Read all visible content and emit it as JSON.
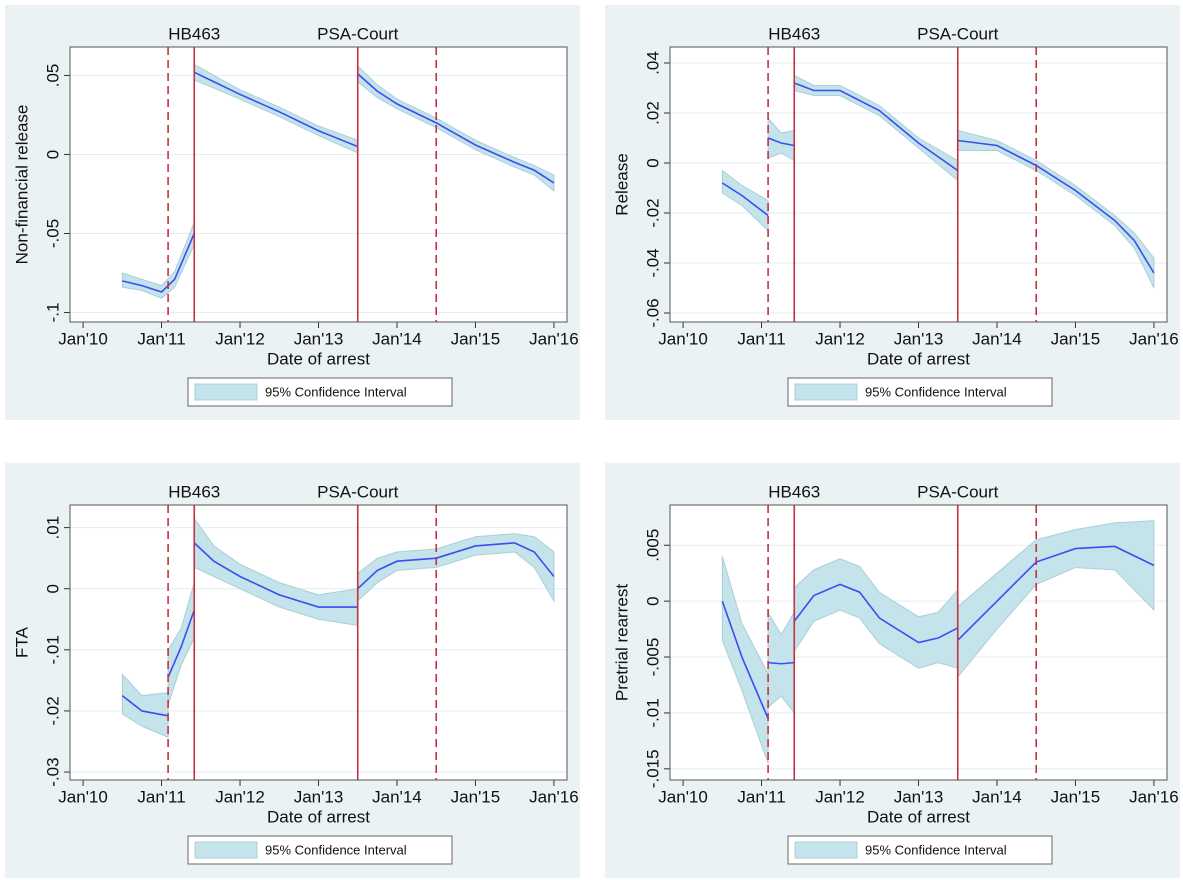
{
  "chart_data": [
    {
      "type": "line",
      "ylabel": "Non-financial release",
      "xlabel": "Date of arrest",
      "xlim": [
        "2009-11",
        "2016-03"
      ],
      "ylim": [
        -0.106,
        0.068
      ],
      "xticks": [
        {
          "value": "2010-01",
          "label": "Jan'10"
        },
        {
          "value": "2011-01",
          "label": "Jan'11"
        },
        {
          "value": "2012-01",
          "label": "Jan'12"
        },
        {
          "value": "2013-01",
          "label": "Jan'13"
        },
        {
          "value": "2014-01",
          "label": "Jan'14"
        },
        {
          "value": "2015-01",
          "label": "Jan'15"
        },
        {
          "value": "2016-01",
          "label": "Jan'16"
        }
      ],
      "yticks": [
        {
          "value": 0.05,
          "label": ".05"
        },
        0,
        {
          "value": -0.05,
          "label": "-.05"
        },
        {
          "value": -0.1,
          "label": "-.1"
        }
      ],
      "grid": true,
      "line_color": "#3a4ef2",
      "event_color": "#c8303f",
      "ci": {
        "name": "95% Confidence Interval",
        "color": "#c5e3ea"
      },
      "events": [
        {
          "label": "HB463",
          "lines": [
            {
              "x": "2011-02",
              "style": "dashed"
            },
            {
              "x": "2011-06",
              "style": "solid"
            }
          ]
        },
        {
          "label": "PSA-Court",
          "lines": [
            {
              "x": "2013-07",
              "style": "solid"
            },
            {
              "x": "2014-07",
              "style": "dashed"
            }
          ]
        }
      ],
      "segments": [
        {
          "x": [
            "2010-07",
            "2010-10",
            "2011-01",
            "2011-03",
            "2011-06"
          ],
          "values": [
            -0.08,
            -0.083,
            -0.087,
            -0.079,
            -0.05
          ],
          "lower": [
            -0.084,
            -0.086,
            -0.091,
            -0.084,
            -0.057
          ],
          "upper": [
            -0.075,
            -0.079,
            -0.083,
            -0.074,
            -0.043
          ]
        },
        {
          "x": [
            "2011-06",
            "2011-09",
            "2012-01",
            "2012-07",
            "2013-01",
            "2013-07"
          ],
          "values": [
            0.052,
            0.046,
            0.038,
            0.027,
            0.015,
            0.005
          ],
          "lower": [
            0.047,
            0.042,
            0.035,
            0.024,
            0.012,
            0.001
          ],
          "upper": [
            0.057,
            0.05,
            0.041,
            0.03,
            0.018,
            0.009
          ]
        },
        {
          "x": [
            "2013-07",
            "2013-10",
            "2014-01",
            "2014-07",
            "2015-01",
            "2015-07",
            "2015-10",
            "2016-01"
          ],
          "values": [
            0.051,
            0.04,
            0.032,
            0.02,
            0.006,
            -0.005,
            -0.01,
            -0.018
          ],
          "lower": [
            0.046,
            0.036,
            0.029,
            0.017,
            0.003,
            -0.008,
            -0.013,
            -0.023
          ],
          "upper": [
            0.056,
            0.044,
            0.035,
            0.023,
            0.009,
            -0.002,
            -0.007,
            -0.013
          ]
        }
      ]
    },
    {
      "type": "line",
      "ylabel": "Release",
      "xlabel": "Date of arrest",
      "xlim": [
        "2009-11",
        "2016-03"
      ],
      "ylim": [
        -0.0636,
        0.0464
      ],
      "xticks": [
        {
          "value": "2010-01",
          "label": "Jan'10"
        },
        {
          "value": "2011-01",
          "label": "Jan'11"
        },
        {
          "value": "2012-01",
          "label": "Jan'12"
        },
        {
          "value": "2013-01",
          "label": "Jan'13"
        },
        {
          "value": "2014-01",
          "label": "Jan'14"
        },
        {
          "value": "2015-01",
          "label": "Jan'15"
        },
        {
          "value": "2016-01",
          "label": "Jan'16"
        }
      ],
      "yticks": [
        {
          "value": 0.04,
          "label": ".04"
        },
        {
          "value": 0.02,
          "label": ".02"
        },
        0,
        {
          "value": -0.02,
          "label": "-.02"
        },
        {
          "value": -0.04,
          "label": "-.04"
        },
        {
          "value": -0.06,
          "label": "-.06"
        }
      ],
      "grid": true,
      "line_color": "#3a4ef2",
      "event_color": "#c8303f",
      "ci": {
        "name": "95% Confidence Interval",
        "color": "#c5e3ea"
      },
      "events": [
        {
          "label": "HB463",
          "lines": [
            {
              "x": "2011-02",
              "style": "dashed"
            },
            {
              "x": "2011-06",
              "style": "solid"
            }
          ]
        },
        {
          "label": "PSA-Court",
          "lines": [
            {
              "x": "2013-07",
              "style": "solid"
            },
            {
              "x": "2014-07",
              "style": "dashed"
            }
          ]
        }
      ],
      "segments": [
        {
          "x": [
            "2010-07",
            "2010-10",
            "2011-02"
          ],
          "values": [
            -0.008,
            -0.013,
            -0.021
          ],
          "lower": [
            -0.012,
            -0.017,
            -0.027
          ],
          "upper": [
            -0.003,
            -0.009,
            -0.015
          ]
        },
        {
          "x": [
            "2011-02",
            "2011-04",
            "2011-06"
          ],
          "values": [
            0.01,
            0.008,
            0.007
          ],
          "lower": [
            0.002,
            0.004,
            0.001
          ],
          "upper": [
            0.018,
            0.012,
            0.013
          ]
        },
        {
          "x": [
            "2011-06",
            "2011-09",
            "2012-01",
            "2012-07",
            "2013-01",
            "2013-07"
          ],
          "values": [
            0.032,
            0.029,
            0.029,
            0.021,
            0.008,
            -0.003
          ],
          "lower": [
            0.029,
            0.027,
            0.027,
            0.019,
            0.006,
            -0.007
          ],
          "upper": [
            0.035,
            0.031,
            0.031,
            0.023,
            0.01,
            0.001
          ]
        },
        {
          "x": [
            "2013-07",
            "2014-01",
            "2014-07",
            "2015-01",
            "2015-07",
            "2015-10",
            "2016-01"
          ],
          "values": [
            0.009,
            0.007,
            -0.001,
            -0.011,
            -0.023,
            -0.031,
            -0.044
          ],
          "lower": [
            0.005,
            0.005,
            -0.003,
            -0.013,
            -0.025,
            -0.034,
            -0.05
          ],
          "upper": [
            0.013,
            0.009,
            0.001,
            -0.009,
            -0.021,
            -0.028,
            -0.038
          ]
        }
      ]
    },
    {
      "type": "line",
      "ylabel": "FTA",
      "xlabel": "Date of arrest",
      "xlim": [
        "2009-11",
        "2016-03"
      ],
      "ylim": [
        -0.0313,
        0.0137
      ],
      "xticks": [
        {
          "value": "2010-01",
          "label": "Jan'10"
        },
        {
          "value": "2011-01",
          "label": "Jan'11"
        },
        {
          "value": "2012-01",
          "label": "Jan'12"
        },
        {
          "value": "2013-01",
          "label": "Jan'13"
        },
        {
          "value": "2014-01",
          "label": "Jan'14"
        },
        {
          "value": "2015-01",
          "label": "Jan'15"
        },
        {
          "value": "2016-01",
          "label": "Jan'16"
        }
      ],
      "yticks": [
        {
          "value": 0.01,
          "label": ".01"
        },
        0,
        {
          "value": -0.01,
          "label": "-.01"
        },
        {
          "value": -0.02,
          "label": "-.02"
        },
        {
          "value": -0.03,
          "label": "-.03"
        }
      ],
      "grid": true,
      "line_color": "#3a4ef2",
      "event_color": "#c8303f",
      "ci": {
        "name": "95% Confidence Interval",
        "color": "#c5e3ea"
      },
      "events": [
        {
          "label": "HB463",
          "lines": [
            {
              "x": "2011-02",
              "style": "dashed"
            },
            {
              "x": "2011-06",
              "style": "solid"
            }
          ]
        },
        {
          "label": "PSA-Court",
          "lines": [
            {
              "x": "2013-07",
              "style": "solid"
            },
            {
              "x": "2014-07",
              "style": "dashed"
            }
          ]
        }
      ],
      "segments": [
        {
          "x": [
            "2010-07",
            "2010-10",
            "2011-02"
          ],
          "values": [
            -0.0175,
            -0.02,
            -0.0208
          ],
          "lower": [
            -0.0205,
            -0.0225,
            -0.0243
          ],
          "upper": [
            -0.014,
            -0.0175,
            -0.017
          ]
        },
        {
          "x": [
            "2011-02",
            "2011-04",
            "2011-06"
          ],
          "values": [
            -0.0145,
            -0.0095,
            -0.0035
          ],
          "lower": [
            -0.019,
            -0.0125,
            -0.008
          ],
          "upper": [
            -0.01,
            -0.0065,
            0.001
          ]
        },
        {
          "x": [
            "2011-06",
            "2011-09",
            "2012-01",
            "2012-07",
            "2013-01",
            "2013-07"
          ],
          "values": [
            0.0075,
            0.0045,
            0.002,
            -0.001,
            -0.003,
            -0.003
          ],
          "lower": [
            0.0035,
            0.002,
            0.0,
            -0.003,
            -0.005,
            -0.006
          ],
          "upper": [
            0.0115,
            0.007,
            0.004,
            0.001,
            -0.001,
            0.0
          ]
        },
        {
          "x": [
            "2013-07",
            "2013-10",
            "2014-01",
            "2014-07",
            "2015-01",
            "2015-07",
            "2015-10",
            "2016-01"
          ],
          "values": [
            0.0,
            0.003,
            0.0045,
            0.005,
            0.007,
            0.0075,
            0.006,
            0.002
          ],
          "lower": [
            -0.002,
            0.001,
            0.003,
            0.0035,
            0.0055,
            0.006,
            0.0035,
            -0.002
          ],
          "upper": [
            0.0025,
            0.005,
            0.006,
            0.0065,
            0.0085,
            0.009,
            0.0085,
            0.006
          ]
        }
      ]
    },
    {
      "type": "line",
      "ylabel": "Pretrial rearrest",
      "xlabel": "Date of arrest",
      "xlim": [
        "2009-11",
        "2016-03"
      ],
      "ylim": [
        -0.016,
        0.0086
      ],
      "xticks": [
        {
          "value": "2010-01",
          "label": "Jan'10"
        },
        {
          "value": "2011-01",
          "label": "Jan'11"
        },
        {
          "value": "2012-01",
          "label": "Jan'12"
        },
        {
          "value": "2013-01",
          "label": "Jan'13"
        },
        {
          "value": "2014-01",
          "label": "Jan'14"
        },
        {
          "value": "2015-01",
          "label": "Jan'15"
        },
        {
          "value": "2016-01",
          "label": "Jan'16"
        }
      ],
      "yticks": [
        {
          "value": 0.005,
          "label": ".005"
        },
        0,
        {
          "value": -0.005,
          "label": "-.005"
        },
        {
          "value": -0.01,
          "label": "-.01"
        },
        {
          "value": -0.015,
          "label": "-.015"
        }
      ],
      "grid": true,
      "line_color": "#3a4ef2",
      "event_color": "#c8303f",
      "ci": {
        "name": "95% Confidence Interval",
        "color": "#c5e3ea"
      },
      "events": [
        {
          "label": "HB463",
          "lines": [
            {
              "x": "2011-02",
              "style": "dashed"
            },
            {
              "x": "2011-06",
              "style": "solid"
            }
          ]
        },
        {
          "label": "PSA-Court",
          "lines": [
            {
              "x": "2013-07",
              "style": "solid"
            },
            {
              "x": "2014-07",
              "style": "dashed"
            }
          ]
        }
      ],
      "segments": [
        {
          "x": [
            "2010-07",
            "2010-10",
            "2011-02"
          ],
          "values": [
            0.0,
            -0.005,
            -0.0105
          ],
          "lower": [
            -0.0035,
            -0.008,
            -0.0145
          ],
          "upper": [
            0.004,
            -0.002,
            -0.0065
          ]
        },
        {
          "x": [
            "2011-02",
            "2011-04",
            "2011-06"
          ],
          "values": [
            -0.0055,
            -0.0056,
            -0.0055
          ],
          "lower": [
            -0.0095,
            -0.0085,
            -0.01
          ],
          "upper": [
            -0.001,
            -0.003,
            -0.001
          ]
        },
        {
          "x": [
            "2011-06",
            "2011-09",
            "2012-01",
            "2012-04",
            "2012-07",
            "2013-01",
            "2013-04",
            "2013-07"
          ],
          "values": [
            -0.0018,
            0.0005,
            0.0015,
            0.0008,
            -0.0015,
            -0.0037,
            -0.0033,
            -0.0024
          ],
          "lower": [
            -0.0045,
            -0.0018,
            -0.0008,
            -0.0015,
            -0.0038,
            -0.006,
            -0.0055,
            -0.006
          ],
          "upper": [
            0.0012,
            0.0028,
            0.0038,
            0.0031,
            0.0008,
            -0.0014,
            -0.001,
            0.001
          ]
        },
        {
          "x": [
            "2013-07",
            "2014-01",
            "2014-07",
            "2015-01",
            "2015-07",
            "2016-01"
          ],
          "values": [
            -0.0035,
            0.0,
            0.0035,
            0.0047,
            0.0049,
            0.0032
          ],
          "lower": [
            -0.0068,
            -0.0025,
            0.0015,
            0.003,
            0.0028,
            -0.0008
          ],
          "upper": [
            -0.0005,
            0.0025,
            0.0055,
            0.0064,
            0.007,
            0.0072
          ]
        }
      ]
    }
  ]
}
